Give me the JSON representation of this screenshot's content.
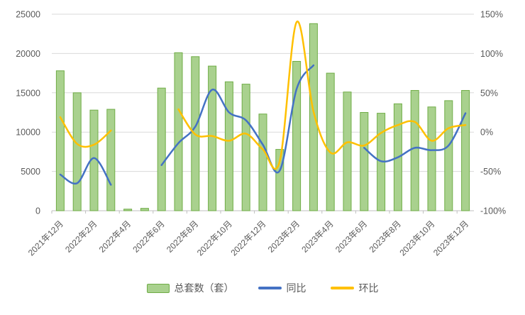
{
  "chart_data": {
    "type": "bar+line-combo",
    "title": "",
    "grid": true,
    "legend_position": "bottom",
    "categories": [
      "2021年12月",
      "2022年1月",
      "2022年2月",
      "2022年3月",
      "2022年4月",
      "2022年5月",
      "2022年6月",
      "2022年7月",
      "2022年8月",
      "2022年9月",
      "2022年10月",
      "2022年11月",
      "2022年12月",
      "2023年1月",
      "2023年2月",
      "2023年3月",
      "2023年4月",
      "2023年5月",
      "2023年6月",
      "2023年7月",
      "2023年8月",
      "2023年9月",
      "2023年10月",
      "2023年11月",
      "2023年12月"
    ],
    "x_tick_labels": [
      "2021年12月",
      "2022年2月",
      "2022年4月",
      "2022年6月",
      "2022年8月",
      "2022年10月",
      "2022年12月",
      "2023年2月",
      "2023年4月",
      "2023年6月",
      "2023年8月",
      "2023年10月",
      "2023年12月"
    ],
    "left_axis": {
      "min": 0,
      "max": 25000,
      "step": 5000,
      "tick_labels": [
        "0",
        "5000",
        "10000",
        "15000",
        "20000",
        "25000"
      ]
    },
    "right_axis": {
      "min": -100,
      "max": 150,
      "step": 50,
      "tick_labels": [
        "-100%",
        "-50%",
        "0%",
        "50%",
        "100%",
        "150%"
      ]
    },
    "series": [
      {
        "name": "总套数（套）",
        "type": "bar",
        "axis": "left",
        "fill": "#a9d18e",
        "border": "#70ad47",
        "values": [
          17800,
          15000,
          12800,
          12900,
          200,
          300,
          15600,
          20100,
          19600,
          18400,
          16400,
          16100,
          12300,
          7800,
          19000,
          23800,
          17500,
          15100,
          12500,
          12400,
          13600,
          15300,
          13200,
          14000,
          15300
        ]
      },
      {
        "name": "同比",
        "type": "line",
        "axis": "right",
        "color": "#4472c4",
        "values": [
          -54,
          -65,
          -33,
          -67,
          null,
          null,
          -42,
          -14,
          7,
          54,
          25,
          15,
          -16,
          -49,
          55,
          85,
          null,
          null,
          -20,
          -37,
          -32,
          -20,
          -23,
          -17,
          24
        ]
      },
      {
        "name": "环比",
        "type": "line",
        "axis": "right",
        "color": "#ffc000",
        "values": [
          19,
          -15,
          -16,
          2,
          null,
          null,
          null,
          29,
          -3,
          -5,
          -11,
          -2,
          -22,
          -37,
          140,
          26,
          -26,
          -13,
          -17,
          -1,
          9,
          13,
          -11,
          5,
          9
        ]
      }
    ]
  },
  "style": {
    "gridline_color": "#d9d9d9",
    "axis_line_color": "#bfbfbf",
    "text_color": "#595959",
    "background": "#ffffff"
  }
}
